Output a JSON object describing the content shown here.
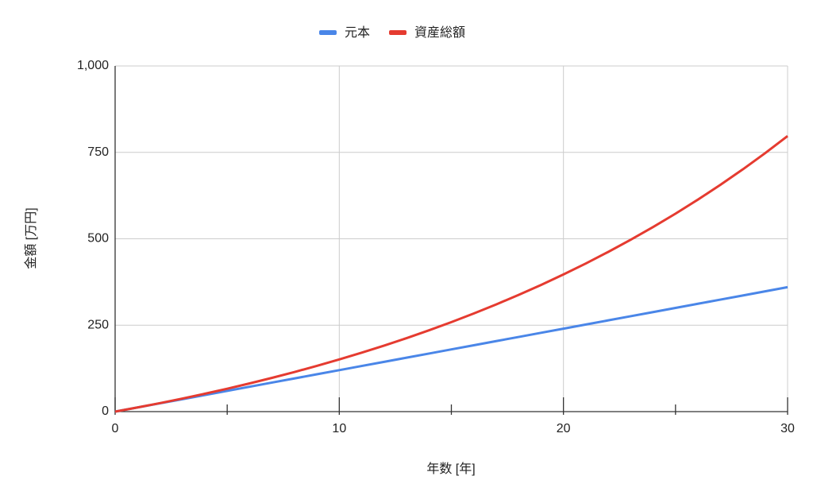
{
  "chart_data": {
    "type": "line",
    "x_label": "年数 [年]",
    "y_label": "金額 [万円]",
    "x": [
      0,
      1,
      2,
      3,
      4,
      5,
      6,
      7,
      8,
      9,
      10,
      11,
      12,
      13,
      14,
      15,
      16,
      17,
      18,
      19,
      20,
      21,
      22,
      23,
      24,
      25,
      26,
      27,
      28,
      29,
      30
    ],
    "series": [
      {
        "name": "元本",
        "color": "#4a86e8",
        "values": [
          0,
          12,
          24,
          36,
          48,
          60,
          72,
          84,
          96,
          108,
          120,
          132,
          144,
          156,
          168,
          180,
          192,
          204,
          216,
          228,
          240,
          252,
          264,
          276,
          288,
          300,
          312,
          324,
          336,
          348,
          360
        ]
      },
      {
        "name": "資産総額",
        "color": "#e53b30",
        "values": [
          0,
          12,
          24.6,
          37.8,
          51.7,
          66.3,
          81.6,
          97.7,
          114.6,
          132.3,
          150.9,
          170.5,
          191,
          212.6,
          235.2,
          258.9,
          283.9,
          310.1,
          337.6,
          366.5,
          396.8,
          428.6,
          462.1,
          497.2,
          534,
          572.7,
          613.4,
          656,
          700.8,
          747.9,
          797.3
        ]
      }
    ],
    "xlim": [
      0,
      30
    ],
    "xticks": [
      0,
      10,
      20,
      30
    ],
    "xminorticks": [
      5,
      15,
      25
    ],
    "ylim": [
      0,
      1000
    ],
    "yticks": [
      0,
      250,
      500,
      750,
      {
        "value": 1000,
        "label": "1,000"
      }
    ],
    "grid": true,
    "legend": "top"
  }
}
